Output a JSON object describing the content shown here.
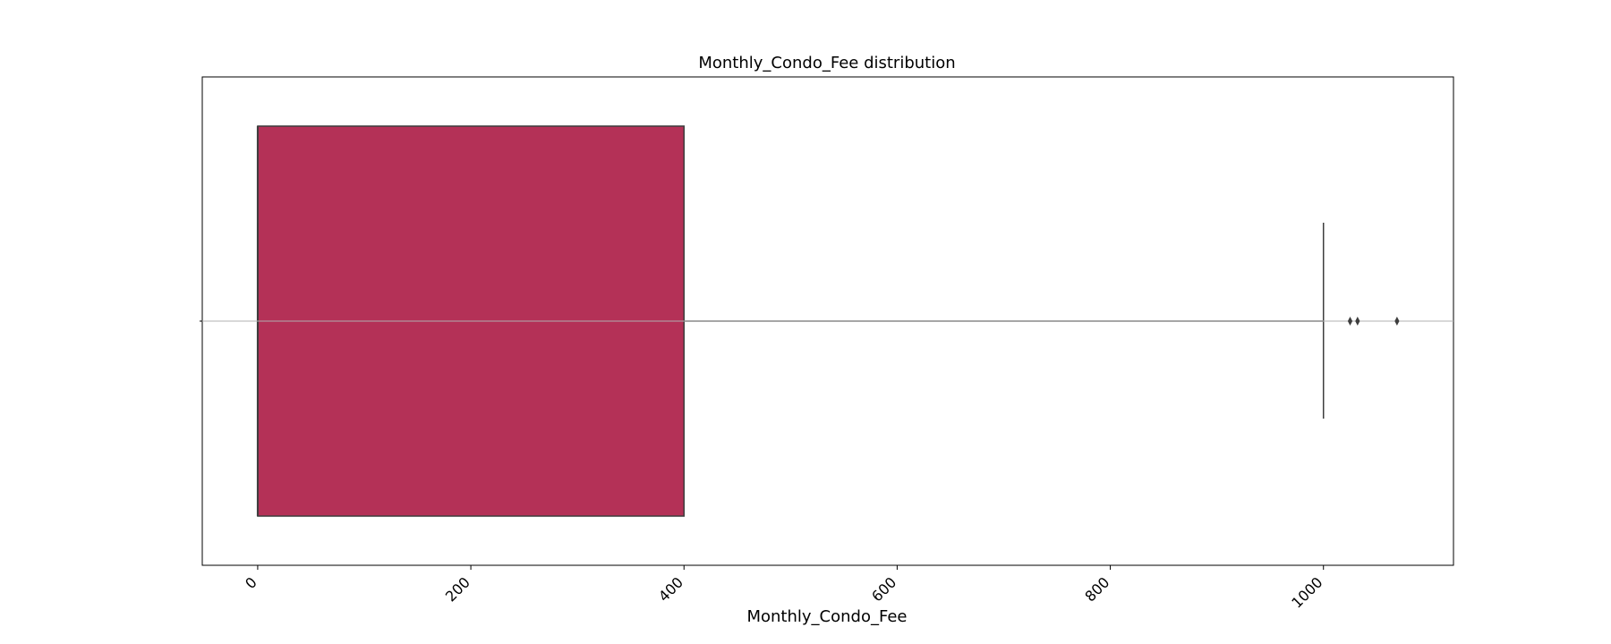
{
  "chart_data": {
    "type": "box",
    "title": "Monthly_Condo_Fee distribution",
    "xlabel": "Monthly_Condo_Fee",
    "ylabel": "",
    "xlim": [
      -52,
      1122
    ],
    "xticks": [
      0,
      200,
      400,
      600,
      800,
      1000
    ],
    "xtick_labels": [
      "0",
      "200",
      "400",
      "600",
      "800",
      "1000"
    ],
    "tick_rotation_deg": 45,
    "grid": "horizontal line through center only",
    "box": {
      "whisker_low": 0,
      "q1": 0,
      "median": 0,
      "q3": 400,
      "whisker_high": 1000,
      "outliers": [
        1025,
        1032,
        1069
      ]
    },
    "colors": {
      "box_fill": "#b43157",
      "box_edge": "#3d3d3d",
      "whisker": "#3d3d3d",
      "outlier": "#3d3d3d",
      "gridline": "#b0b0b0",
      "axes_frame": "#000000"
    }
  }
}
